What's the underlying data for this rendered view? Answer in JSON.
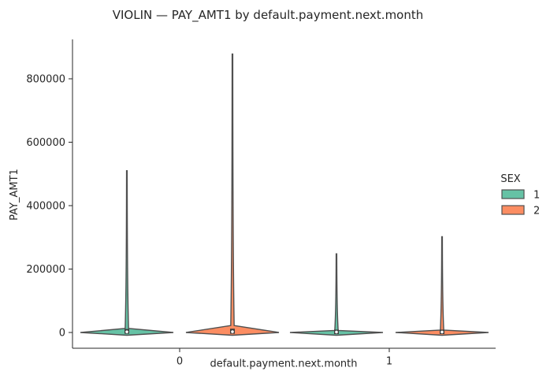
{
  "chart_data": {
    "type": "violin",
    "title": "VIOLIN — PAY_AMT1 by default.payment.next.month",
    "xlabel": "default.payment.next.month",
    "ylabel": "PAY_AMT1",
    "categories": [
      "0",
      "1"
    ],
    "ylim": [
      -50000,
      925000
    ],
    "yticks": [
      0,
      200000,
      400000,
      600000,
      800000
    ],
    "ytick_labels": [
      "0",
      "200000",
      "400000",
      "600000",
      "800000"
    ],
    "legend": {
      "title": "SEX",
      "placement": "right"
    },
    "series": [
      {
        "name": "1",
        "color": "#66c2a5",
        "violins": [
          {
            "category": "0",
            "min": 0,
            "max": 510000,
            "q1": 1000,
            "median": 2200,
            "q3": 6000
          },
          {
            "category": "1",
            "min": 0,
            "max": 248000,
            "q1": 0,
            "median": 1500,
            "q3": 4000
          }
        ]
      },
      {
        "name": "2",
        "color": "#fc8d62",
        "violins": [
          {
            "category": "0",
            "min": 0,
            "max": 878000,
            "q1": 1000,
            "median": 2500,
            "q3": 7000
          },
          {
            "category": "1",
            "min": 0,
            "max": 302000,
            "q1": 0,
            "median": 1500,
            "q3": 4000
          }
        ]
      }
    ],
    "grid": false
  }
}
